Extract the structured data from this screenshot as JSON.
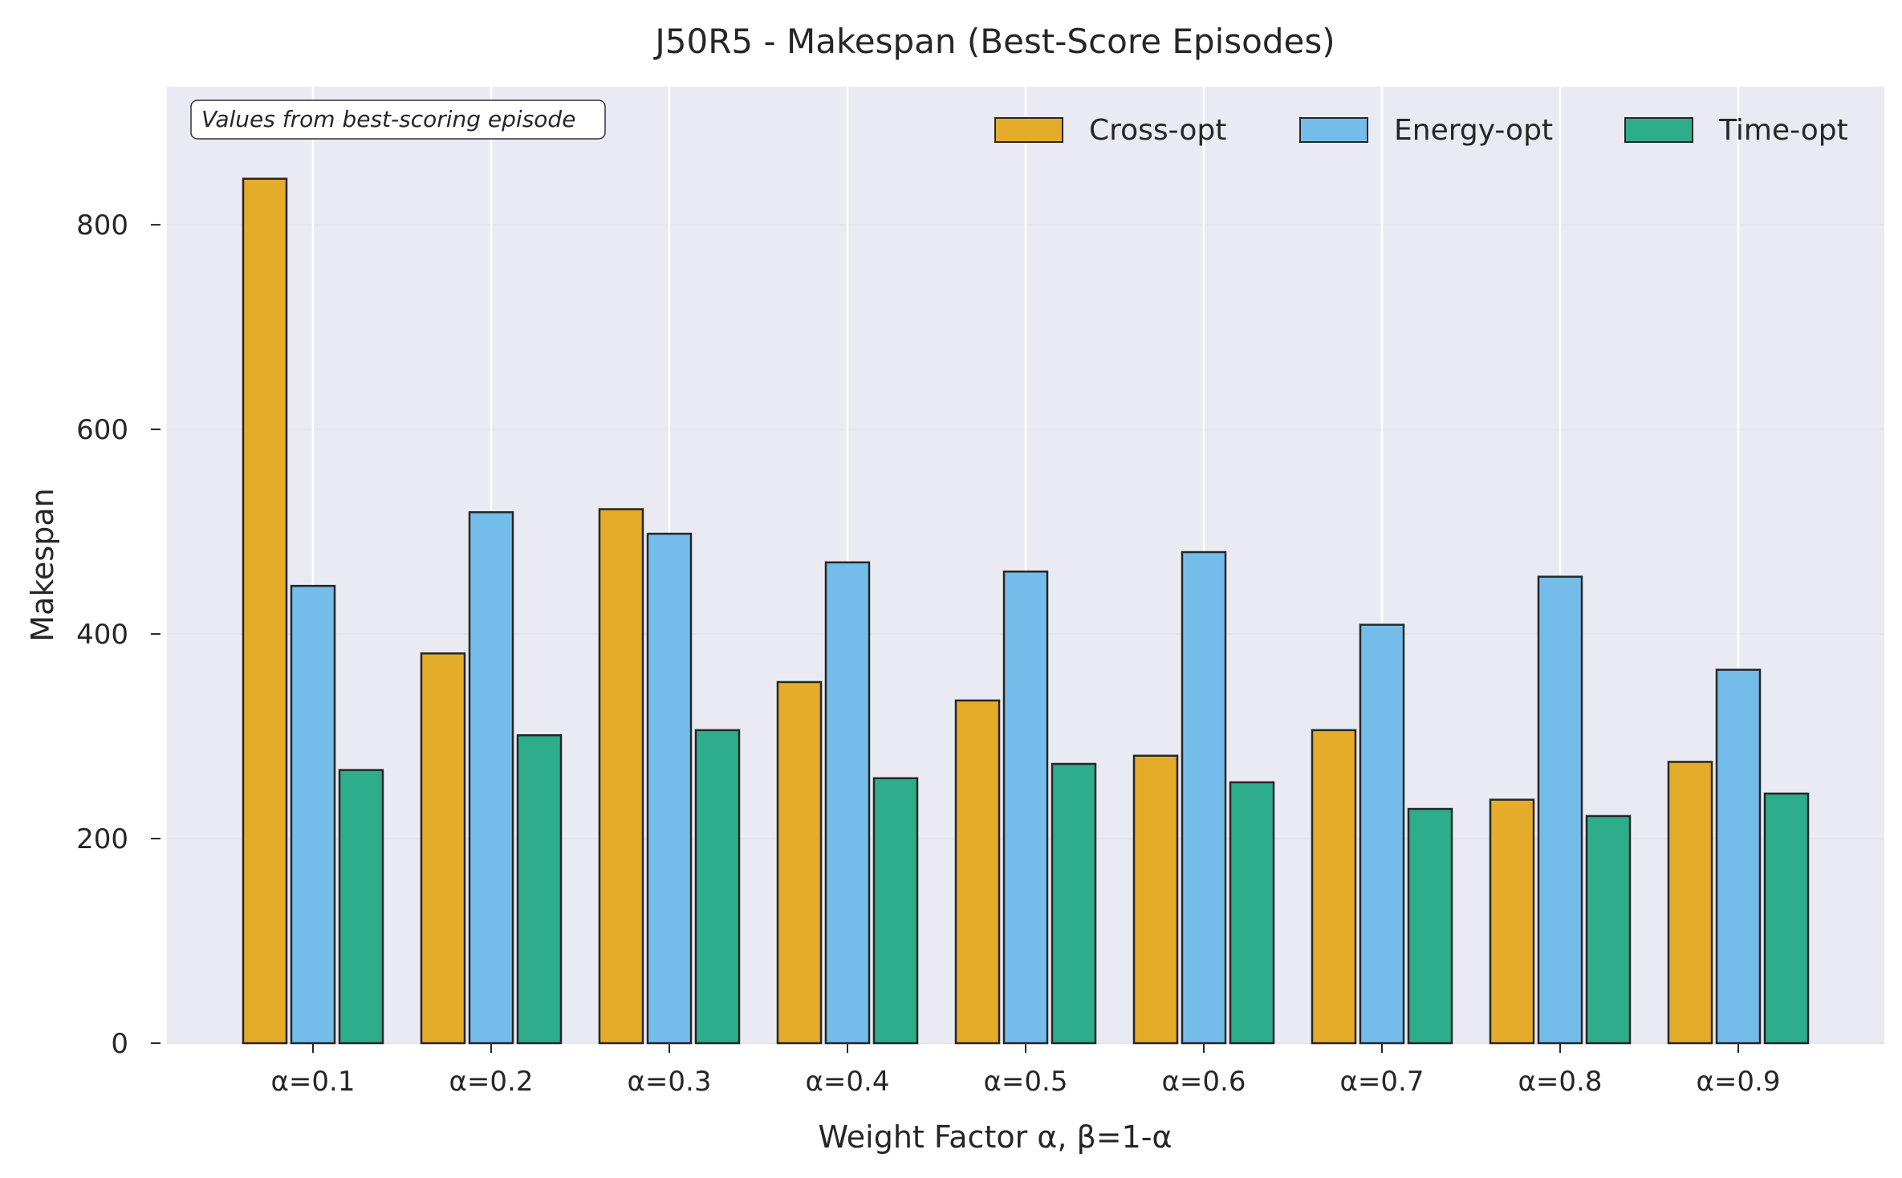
{
  "chart_data": {
    "type": "bar",
    "title": "J50R5 - Makespan (Best-Score Episodes)",
    "xlabel": "Weight Factor α, β=1-α",
    "ylabel": "Makespan",
    "categories": [
      "α=0.1",
      "α=0.2",
      "α=0.3",
      "α=0.4",
      "α=0.5",
      "α=0.6",
      "α=0.7",
      "α=0.8",
      "α=0.9"
    ],
    "series": [
      {
        "name": "Cross-opt",
        "color": "#E5AC2A",
        "values": [
          845,
          381,
          522,
          353,
          335,
          281,
          306,
          238,
          275
        ]
      },
      {
        "name": "Energy-opt",
        "color": "#74BDEA",
        "values": [
          447,
          519,
          498,
          470,
          461,
          480,
          409,
          456,
          365
        ]
      },
      {
        "name": "Time-opt",
        "color": "#2EAD8A",
        "values": [
          267,
          301,
          306,
          259,
          273,
          255,
          229,
          222,
          244
        ]
      }
    ],
    "ylim": [
      0,
      935
    ],
    "yticks": [
      0,
      200,
      400,
      600,
      800
    ],
    "grid": true,
    "legend_position": "top-right",
    "annotation": "Values from best-scoring episode"
  }
}
